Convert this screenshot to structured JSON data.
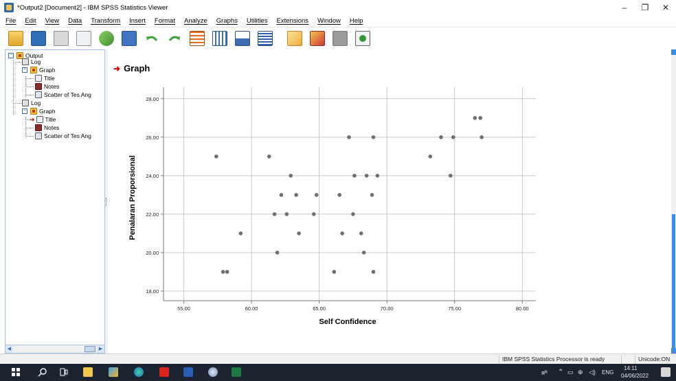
{
  "window": {
    "title": "*Output2 [Document2] - IBM SPSS Statistics Viewer",
    "controls": [
      "–",
      "❐",
      "✕"
    ]
  },
  "menu": [
    "File",
    "Edit",
    "View",
    "Data",
    "Transform",
    "Insert",
    "Format",
    "Analyze",
    "Graphs",
    "Utilities",
    "Extensions",
    "Window",
    "Help"
  ],
  "toolbar": {
    "icons": [
      "open-folder-icon",
      "save-icon",
      "print-icon",
      "print-preview-icon",
      "export-icon",
      "recall-dialog-icon",
      "undo-icon",
      "redo-icon",
      "goto-data-icon",
      "goto-case-icon",
      "goto-variable-icon",
      "variables-icon",
      "designate-window-icon",
      "insert-output-icon",
      "hide-icon",
      "show-icon"
    ]
  },
  "outline": {
    "items": [
      {
        "label": "Output",
        "icon": "output-icon",
        "level": 0,
        "expander": "⊟"
      },
      {
        "label": "Log",
        "icon": "log-icon",
        "level": 1
      },
      {
        "label": "Graph",
        "icon": "graph-icon",
        "level": 1,
        "expander": "⊟"
      },
      {
        "label": "Title",
        "icon": "title-icon",
        "level": 2
      },
      {
        "label": "Notes",
        "icon": "notes-icon",
        "level": 2
      },
      {
        "label": "Scatter of Tes Ang",
        "icon": "scatter-icon",
        "level": 2
      },
      {
        "label": "Log",
        "icon": "log-icon",
        "level": 1
      },
      {
        "label": "Graph",
        "icon": "graph-icon",
        "level": 1,
        "expander": "⊟"
      },
      {
        "label": "Title",
        "icon": "title-icon",
        "level": 2,
        "selected": true
      },
      {
        "label": "Notes",
        "icon": "notes-icon",
        "level": 2
      },
      {
        "label": "Scatter of Tes Ang",
        "icon": "scatter-icon",
        "level": 2
      }
    ]
  },
  "content": {
    "heading": "Graph"
  },
  "chart_data": {
    "type": "scatter",
    "title": "",
    "xlabel": "Self Confidence",
    "ylabel": "Penalaran Proporsional",
    "xlim": [
      53.5,
      81.0
    ],
    "ylim": [
      17.5,
      28.6
    ],
    "xticks": [
      "55.00",
      "60.00",
      "65.00",
      "70.00",
      "75.00",
      "80.00"
    ],
    "yticks": [
      "18.00",
      "20.00",
      "22.00",
      "24.00",
      "26.00",
      "28.00"
    ],
    "xtick_values": [
      55,
      60,
      65,
      70,
      75,
      80
    ],
    "ytick_values": [
      18,
      20,
      22,
      24,
      26,
      28
    ],
    "grid": true,
    "point_color": "#6e6e6e",
    "points": [
      {
        "x": 57.4,
        "y": 25
      },
      {
        "x": 57.9,
        "y": 19
      },
      {
        "x": 58.2,
        "y": 19
      },
      {
        "x": 59.2,
        "y": 21
      },
      {
        "x": 61.3,
        "y": 25
      },
      {
        "x": 61.7,
        "y": 22
      },
      {
        "x": 61.9,
        "y": 20
      },
      {
        "x": 62.2,
        "y": 23
      },
      {
        "x": 62.6,
        "y": 22
      },
      {
        "x": 62.9,
        "y": 24
      },
      {
        "x": 63.3,
        "y": 23
      },
      {
        "x": 63.5,
        "y": 21
      },
      {
        "x": 64.6,
        "y": 22
      },
      {
        "x": 64.8,
        "y": 23
      },
      {
        "x": 66.1,
        "y": 19
      },
      {
        "x": 66.5,
        "y": 23
      },
      {
        "x": 66.7,
        "y": 21
      },
      {
        "x": 67.2,
        "y": 26
      },
      {
        "x": 67.5,
        "y": 22
      },
      {
        "x": 67.6,
        "y": 24
      },
      {
        "x": 68.1,
        "y": 21
      },
      {
        "x": 68.3,
        "y": 20
      },
      {
        "x": 68.5,
        "y": 24
      },
      {
        "x": 68.9,
        "y": 23
      },
      {
        "x": 69.0,
        "y": 26
      },
      {
        "x": 69.0,
        "y": 19
      },
      {
        "x": 69.3,
        "y": 24
      },
      {
        "x": 73.2,
        "y": 25
      },
      {
        "x": 74.0,
        "y": 26
      },
      {
        "x": 74.7,
        "y": 24
      },
      {
        "x": 74.9,
        "y": 26
      },
      {
        "x": 76.5,
        "y": 27
      },
      {
        "x": 76.9,
        "y": 27
      },
      {
        "x": 77.0,
        "y": 26
      }
    ]
  },
  "status": {
    "processor": "IBM SPSS Statistics Processor is ready",
    "unicode": "Unicode:ON"
  },
  "taskbar": {
    "icons": [
      "windows-start-icon",
      "search-icon",
      "task-view-icon",
      "file-explorer-icon",
      "spss-taskbar-icon",
      "edge-icon",
      "acrobat-icon",
      "word-icon",
      "spss-viewer-icon",
      "excel-icon"
    ],
    "tray": {
      "indicator": "ᴙᴿ",
      "lang": "ENG",
      "time": "14:11",
      "date": "04/06/2022"
    }
  }
}
